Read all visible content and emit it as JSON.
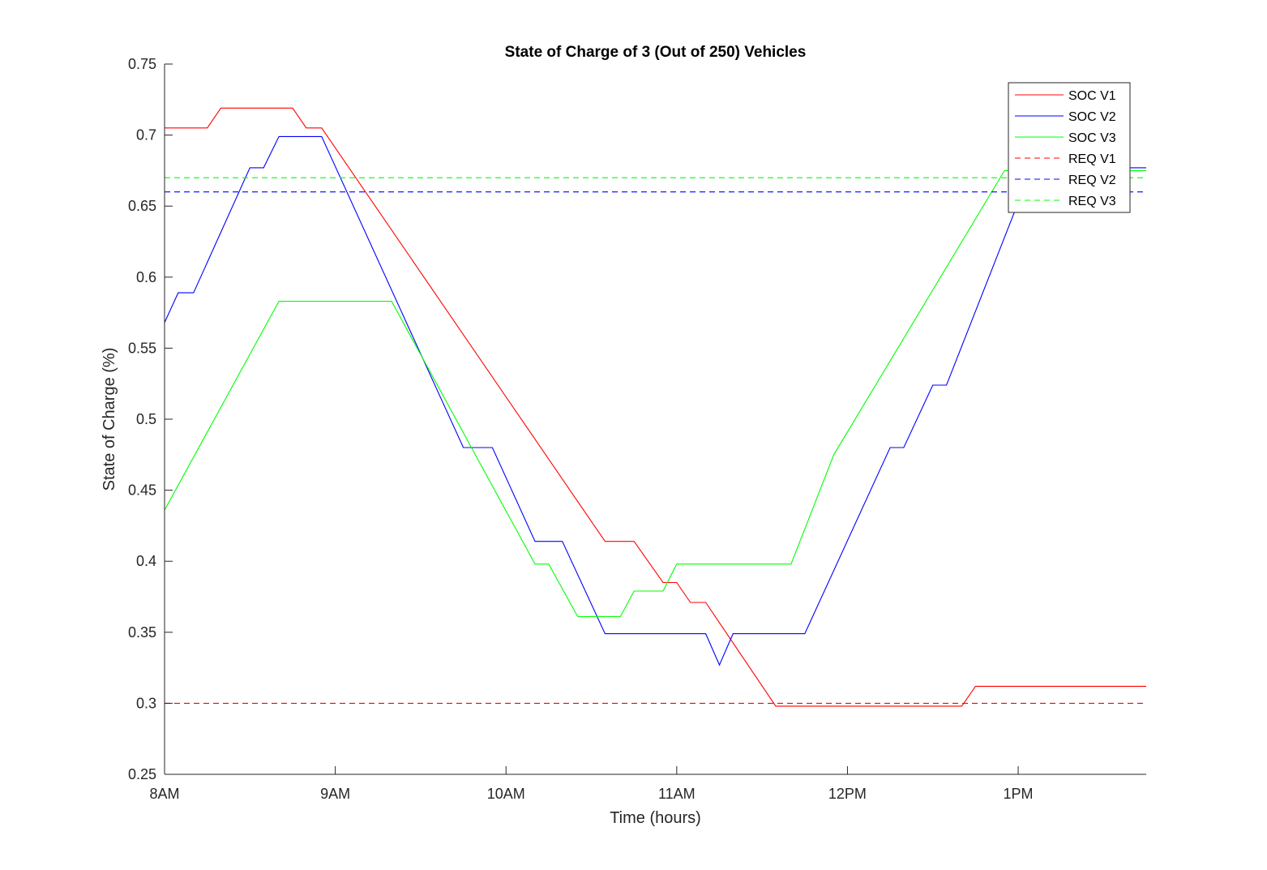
{
  "chart_data": {
    "type": "line",
    "title": "State of Charge of 3 (Out of 250) Vehicles",
    "xlabel": "Time (hours)",
    "ylabel": "State of Charge (%)",
    "xlim": [
      8,
      13.75
    ],
    "ylim": [
      0.25,
      0.75
    ],
    "x_ticks": [
      {
        "value": 8,
        "label": "8AM"
      },
      {
        "value": 9,
        "label": "9AM"
      },
      {
        "value": 10,
        "label": "10AM"
      },
      {
        "value": 11,
        "label": "11AM"
      },
      {
        "value": 12,
        "label": "12PM"
      },
      {
        "value": 13,
        "label": "1PM"
      }
    ],
    "y_ticks": [
      {
        "value": 0.25,
        "label": "0.25"
      },
      {
        "value": 0.3,
        "label": "0.3"
      },
      {
        "value": 0.35,
        "label": "0.35"
      },
      {
        "value": 0.4,
        "label": "0.4"
      },
      {
        "value": 0.45,
        "label": "0.45"
      },
      {
        "value": 0.5,
        "label": "0.5"
      },
      {
        "value": 0.55,
        "label": "0.55"
      },
      {
        "value": 0.6,
        "label": "0.6"
      },
      {
        "value": 0.65,
        "label": "0.65"
      },
      {
        "value": 0.7,
        "label": "0.7"
      },
      {
        "value": 0.75,
        "label": "0.75"
      }
    ],
    "grid": false,
    "legend_position": "top-right",
    "series": [
      {
        "name": "SOC V1",
        "color": "#ff0000",
        "style": "solid",
        "points": [
          [
            8.0,
            0.705
          ],
          [
            8.25,
            0.705
          ],
          [
            8.33,
            0.719
          ],
          [
            8.75,
            0.719
          ],
          [
            8.83,
            0.705
          ],
          [
            8.92,
            0.705
          ],
          [
            10.58,
            0.414
          ],
          [
            10.75,
            0.414
          ],
          [
            10.92,
            0.385
          ],
          [
            11.0,
            0.385
          ],
          [
            11.08,
            0.371
          ],
          [
            11.17,
            0.371
          ],
          [
            11.58,
            0.298
          ],
          [
            11.67,
            0.298
          ],
          [
            12.67,
            0.298
          ],
          [
            12.75,
            0.312
          ],
          [
            13.75,
            0.312
          ]
        ]
      },
      {
        "name": "SOC V2",
        "color": "#0000ff",
        "style": "solid",
        "points": [
          [
            8.0,
            0.568
          ],
          [
            8.08,
            0.589
          ],
          [
            8.17,
            0.589
          ],
          [
            8.5,
            0.677
          ],
          [
            8.58,
            0.677
          ],
          [
            8.67,
            0.699
          ],
          [
            8.92,
            0.699
          ],
          [
            9.75,
            0.48
          ],
          [
            9.92,
            0.48
          ],
          [
            10.17,
            0.414
          ],
          [
            10.33,
            0.414
          ],
          [
            10.58,
            0.349
          ],
          [
            11.17,
            0.349
          ],
          [
            11.25,
            0.327
          ],
          [
            11.33,
            0.349
          ],
          [
            11.75,
            0.349
          ],
          [
            12.25,
            0.48
          ],
          [
            12.33,
            0.48
          ],
          [
            12.5,
            0.524
          ],
          [
            12.58,
            0.524
          ],
          [
            13.08,
            0.677
          ],
          [
            13.75,
            0.677
          ]
        ]
      },
      {
        "name": "SOC V3",
        "color": "#00ff00",
        "style": "solid",
        "points": [
          [
            8.0,
            0.436
          ],
          [
            8.67,
            0.583
          ],
          [
            9.33,
            0.583
          ],
          [
            10.17,
            0.398
          ],
          [
            10.25,
            0.398
          ],
          [
            10.42,
            0.361
          ],
          [
            10.67,
            0.361
          ],
          [
            10.75,
            0.379
          ],
          [
            10.92,
            0.379
          ],
          [
            11.0,
            0.398
          ],
          [
            11.67,
            0.398
          ],
          [
            11.92,
            0.475
          ],
          [
            12.92,
            0.675
          ],
          [
            13.75,
            0.675
          ]
        ]
      },
      {
        "name": "REQ V1",
        "color": "#ff0000",
        "style": "dashed",
        "points": [
          [
            8.0,
            0.3
          ],
          [
            13.75,
            0.3
          ]
        ]
      },
      {
        "name": "REQ V2",
        "color": "#0000ff",
        "style": "dashed",
        "points": [
          [
            8.0,
            0.66
          ],
          [
            13.75,
            0.66
          ]
        ]
      },
      {
        "name": "REQ V3",
        "color": "#00ff00",
        "style": "dashed",
        "points": [
          [
            8.0,
            0.67
          ],
          [
            13.75,
            0.67
          ]
        ]
      }
    ]
  }
}
